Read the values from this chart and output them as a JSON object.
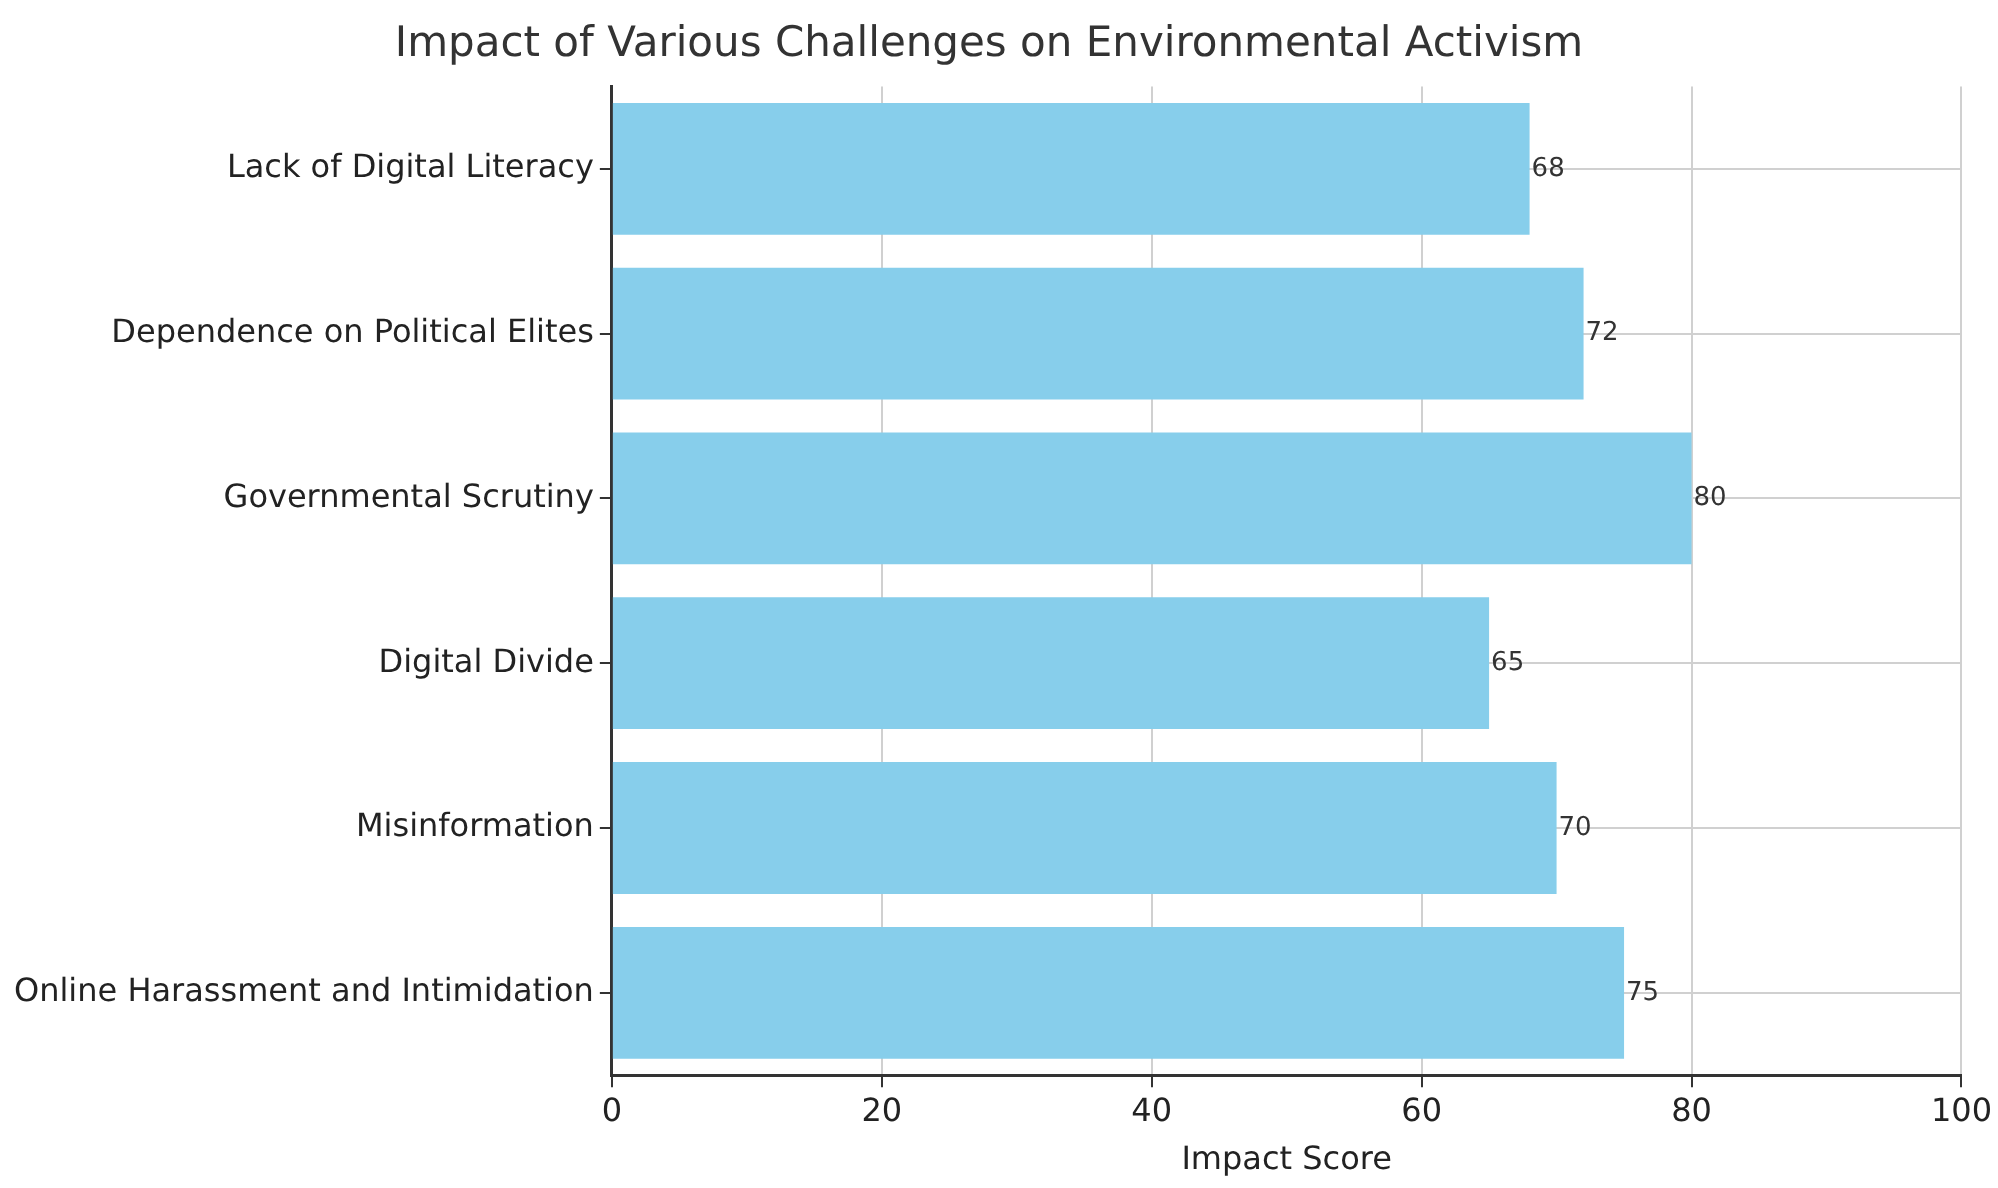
{
  "chart_data": {
    "type": "bar",
    "orientation": "horizontal",
    "title": "Impact of Various Challenges on Environmental Activism",
    "xlabel": "Impact Score",
    "categories": [
      "Lack of Digital Literacy",
      "Dependence on Political Elites",
      "Governmental Scrutiny",
      "Digital Divide",
      "Misinformation",
      "Online Harassment and Intimidation"
    ],
    "values": [
      68,
      72,
      80,
      65,
      70,
      75
    ],
    "color": "#87ceeb",
    "xlim": [
      0,
      100
    ],
    "xticks": [
      0,
      20,
      40,
      60,
      80,
      100
    ],
    "grid": true,
    "data_labels": true
  }
}
